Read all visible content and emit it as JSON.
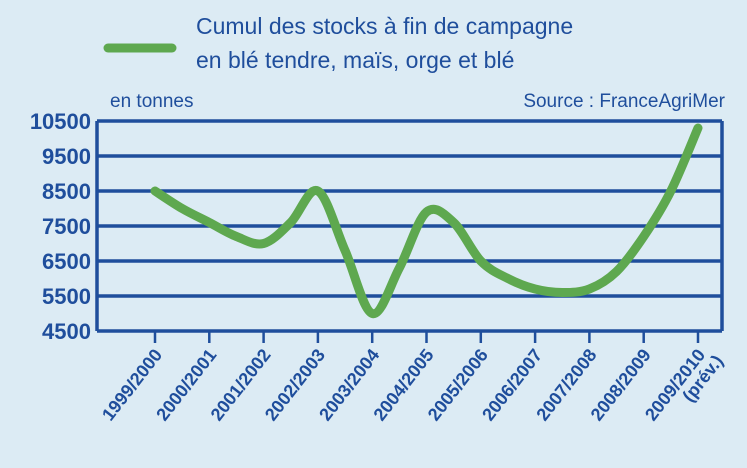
{
  "chart_data": {
    "type": "line",
    "legend": {
      "line1": "Cumul des stocks à fin de campagne",
      "line2": "en blé tendre, maïs, orge et blé"
    },
    "unit_label": "en tonnes",
    "source": "Source : FranceAgriMer",
    "categories": [
      "1999/2000",
      "2000/2001",
      "2001/2002",
      "2002/2003",
      "2003/2004",
      "2004/2005",
      "2005/2006",
      "2006/2007",
      "2007/2008",
      "2008/2009",
      "2009/2010"
    ],
    "last_category_note": "(prév.)",
    "series": [
      {
        "name": "Cumul des stocks à fin de campagne en blé tendre, maïs, orge et blé",
        "color": "#5ea84f",
        "x": [
          0,
          0.5,
          1,
          1.5,
          2,
          2.5,
          3,
          3.5,
          4,
          4.5,
          5,
          5.5,
          6,
          6.5,
          7,
          7.5,
          8,
          8.5,
          9,
          9.5,
          10
        ],
        "values": [
          8500,
          8000,
          7600,
          7200,
          7000,
          7600,
          8500,
          6800,
          5000,
          6300,
          7900,
          7600,
          6500,
          6000,
          5700,
          5600,
          5700,
          6200,
          7200,
          8500,
          10300
        ]
      }
    ],
    "yticks": [
      4500,
      5500,
      6500,
      7500,
      8500,
      9500,
      10500
    ],
    "ylim": [
      4500,
      10500
    ],
    "grid": true,
    "colors": {
      "background": "#dcebf4",
      "axis": "#1f4e9c",
      "grid": "#1f4e9c",
      "text": "#1f4e9c",
      "line": "#5ea84f"
    }
  }
}
